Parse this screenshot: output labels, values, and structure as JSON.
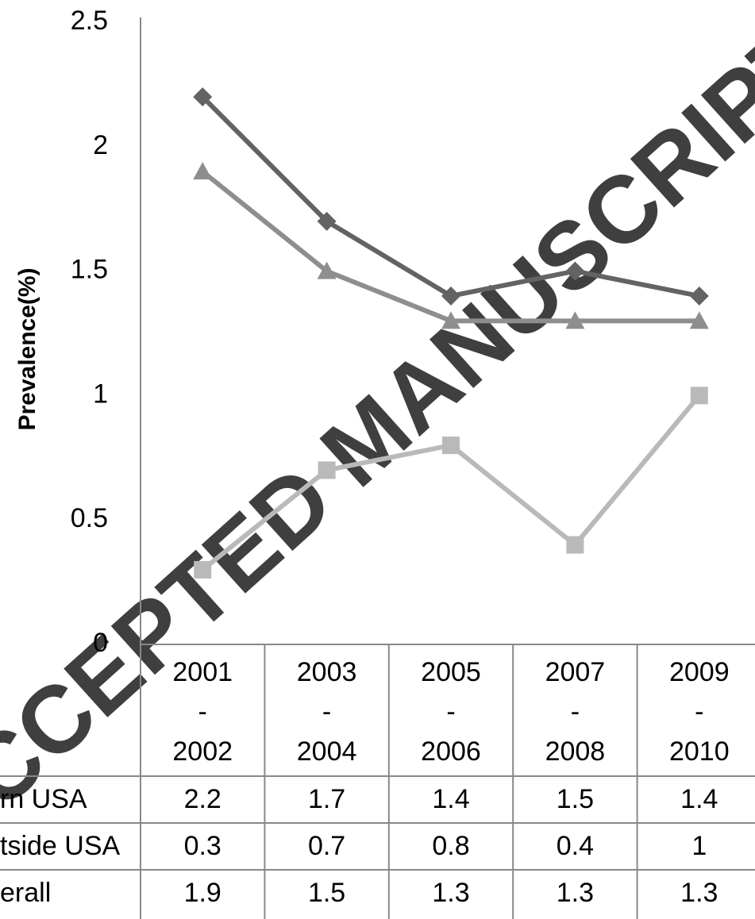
{
  "chart_data": {
    "type": "line",
    "y_label": "Prevalence(%)",
    "watermark": "ACCEPTED MANUSCRIPT",
    "categories": [
      "2001\n-\n2002",
      "2003\n-\n2004",
      "2005\n-\n2006",
      "2007\n-\n2008",
      "2009\n-\n2010"
    ],
    "series": [
      {
        "name": "rn USA",
        "color": "#636363",
        "marker": "diamond",
        "values": [
          2.2,
          1.7,
          1.4,
          1.5,
          1.4
        ]
      },
      {
        "name": "tside USA",
        "color": "#b9b9b9",
        "marker": "square",
        "values": [
          0.3,
          0.7,
          0.8,
          0.4,
          1
        ]
      },
      {
        "name": "erall",
        "color": "#8e8e8e",
        "marker": "triangle",
        "values": [
          1.9,
          1.5,
          1.3,
          1.3,
          1.3
        ]
      }
    ],
    "ylim": [
      0,
      2.5
    ],
    "yticks": [
      0,
      0.5,
      1,
      1.5,
      2,
      2.5
    ],
    "grid": false
  }
}
